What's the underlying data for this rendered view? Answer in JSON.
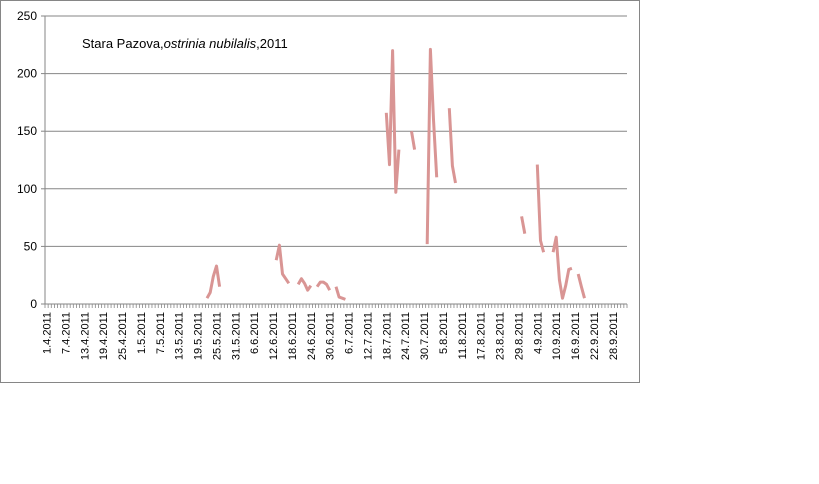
{
  "chart_data": {
    "type": "line",
    "title_parts": [
      "Stara Pazova,",
      "ostrinia nubilalis",
      ",2011"
    ],
    "xlabel": "",
    "ylabel": "",
    "ylim": [
      0,
      250
    ],
    "yticks": [
      0,
      50,
      100,
      150,
      200,
      250
    ],
    "grid": true,
    "legend": "none",
    "line_color": "#d99594",
    "xlim": [
      "2011-04-01",
      "2011-10-03"
    ],
    "tick_labels": [
      "1.4.2011",
      "7.4.2011",
      "13.4.2011",
      "19.4.2011",
      "25.4.2011",
      "1.5.2011",
      "7.5.2011",
      "13.5.2011",
      "19.5.2011",
      "25.5.2011",
      "31.5.2011",
      "6.6.2011",
      "12.6.2011",
      "18.6.2011",
      "24.6.2011",
      "30.6.2011",
      "6.7.2011",
      "12.7.2011",
      "18.7.2011",
      "24.7.2011",
      "30.7.2011",
      "5.8.2011",
      "11.8.2011",
      "17.8.2011",
      "23.8.2011",
      "29.8.2011",
      "4.9.2011",
      "10.9.2011",
      "16.9.2011",
      "22.9.2011",
      "28.9.2011"
    ],
    "segments": [
      [
        [
          "2011-05-22",
          5
        ],
        [
          "2011-05-23",
          10
        ],
        [
          "2011-05-24",
          24
        ],
        [
          "2011-05-25",
          33
        ],
        [
          "2011-05-26",
          15
        ]
      ],
      [
        [
          "2011-06-13",
          38
        ],
        [
          "2011-06-14",
          51
        ],
        [
          "2011-06-15",
          26
        ],
        [
          "2011-06-16",
          22
        ],
        [
          "2011-06-17",
          18
        ]
      ],
      [
        [
          "2011-06-20",
          17
        ],
        [
          "2011-06-21",
          22
        ],
        [
          "2011-06-22",
          18
        ],
        [
          "2011-06-23",
          12
        ],
        [
          "2011-06-24",
          16
        ]
      ],
      [
        [
          "2011-06-26",
          15
        ],
        [
          "2011-06-27",
          19
        ],
        [
          "2011-06-28",
          19
        ],
        [
          "2011-06-29",
          17
        ],
        [
          "2011-06-30",
          12
        ]
      ],
      [
        [
          "2011-07-02",
          15
        ],
        [
          "2011-07-03",
          6
        ],
        [
          "2011-07-04",
          5
        ],
        [
          "2011-07-05",
          4
        ]
      ],
      [
        [
          "2011-07-18",
          166
        ],
        [
          "2011-07-19",
          121
        ],
        [
          "2011-07-20",
          220
        ],
        [
          "2011-07-21",
          97
        ],
        [
          "2011-07-22",
          134
        ]
      ],
      [
        [
          "2011-07-26",
          150
        ],
        [
          "2011-07-27",
          134
        ]
      ],
      [
        [
          "2011-07-31",
          52
        ],
        [
          "2011-08-01",
          221
        ],
        [
          "2011-08-02",
          160
        ],
        [
          "2011-08-03",
          110
        ]
      ],
      [
        [
          "2011-08-07",
          170
        ],
        [
          "2011-08-08",
          120
        ],
        [
          "2011-08-09",
          105
        ]
      ],
      [
        [
          "2011-08-30",
          76
        ],
        [
          "2011-08-31",
          61
        ]
      ],
      [
        [
          "2011-09-04",
          121
        ],
        [
          "2011-09-05",
          55
        ],
        [
          "2011-09-06",
          45
        ]
      ],
      [
        [
          "2011-09-09",
          45
        ],
        [
          "2011-09-10",
          58
        ],
        [
          "2011-09-11",
          21
        ],
        [
          "2011-09-12",
          5
        ],
        [
          "2011-09-13",
          16
        ],
        [
          "2011-09-14",
          30
        ],
        [
          "2011-09-15",
          31
        ]
      ],
      [
        [
          "2011-09-17",
          26
        ],
        [
          "2011-09-18",
          15
        ],
        [
          "2011-09-19",
          5
        ]
      ]
    ]
  }
}
